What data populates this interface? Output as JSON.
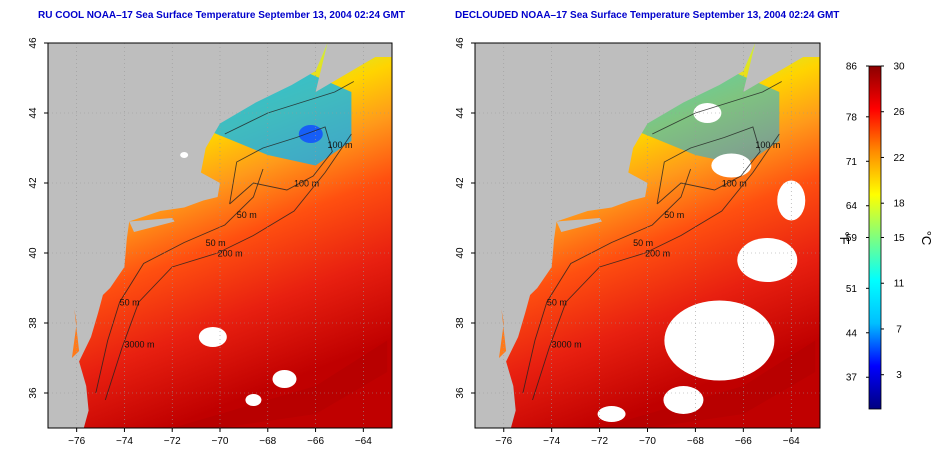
{
  "titles": {
    "left": "RU COOL NOAA–17 Sea Surface Temperature September 13, 2004 02:24 GMT",
    "right": "DECLOUDED NOAA–17 Sea Surface Temperature September 13, 2004 02:24 GMT"
  },
  "axes": {
    "x_ticks": [
      "−76",
      "−74",
      "−72",
      "−70",
      "−68",
      "−66",
      "−64"
    ],
    "x_values": [
      -76,
      -74,
      -72,
      -70,
      -68,
      -66,
      -64
    ],
    "x_range": [
      -77.2,
      -62.8
    ],
    "y_ticks": [
      "36",
      "38",
      "40",
      "42",
      "44",
      "46"
    ],
    "y_values": [
      36,
      38,
      40,
      42,
      44,
      46
    ],
    "y_range": [
      35,
      46
    ]
  },
  "contour_labels": [
    {
      "text": "100 m",
      "lon": -65.5,
      "lat": 43.0
    },
    {
      "text": "100 m",
      "lon": -66.9,
      "lat": 41.9
    },
    {
      "text": "50 m",
      "lon": -69.3,
      "lat": 41.0
    },
    {
      "text": "50 m",
      "lon": -70.6,
      "lat": 40.2
    },
    {
      "text": "200 m",
      "lon": -70.1,
      "lat": 39.9
    },
    {
      "text": "50 m",
      "lon": -74.2,
      "lat": 38.5
    },
    {
      "text": "3000 m",
      "lon": -74.0,
      "lat": 37.3
    }
  ],
  "colorbar": {
    "fahrenheit_label": "°F",
    "celsius_label": "°C",
    "fahrenheit_ticks": [
      "86",
      "78",
      "71",
      "64",
      "59",
      "51",
      "44",
      "37"
    ],
    "fahrenheit_values": [
      86,
      78,
      71,
      64,
      59,
      51,
      44,
      37
    ],
    "celsius_ticks": [
      "30",
      "26",
      "22",
      "18",
      "15",
      "11",
      "7",
      "3"
    ],
    "celsius_values": [
      30,
      26,
      22,
      18,
      15,
      11,
      7,
      3
    ],
    "range_c": [
      0,
      30
    ],
    "colors": [
      "#000080",
      "#0000ff",
      "#00bfff",
      "#00ffff",
      "#7fff7f",
      "#ffff00",
      "#ff8c00",
      "#ff0000",
      "#8b0000"
    ]
  },
  "colors": {
    "land": "#bebebe",
    "cloud": "#ffffff",
    "title": "#0000cc"
  }
}
